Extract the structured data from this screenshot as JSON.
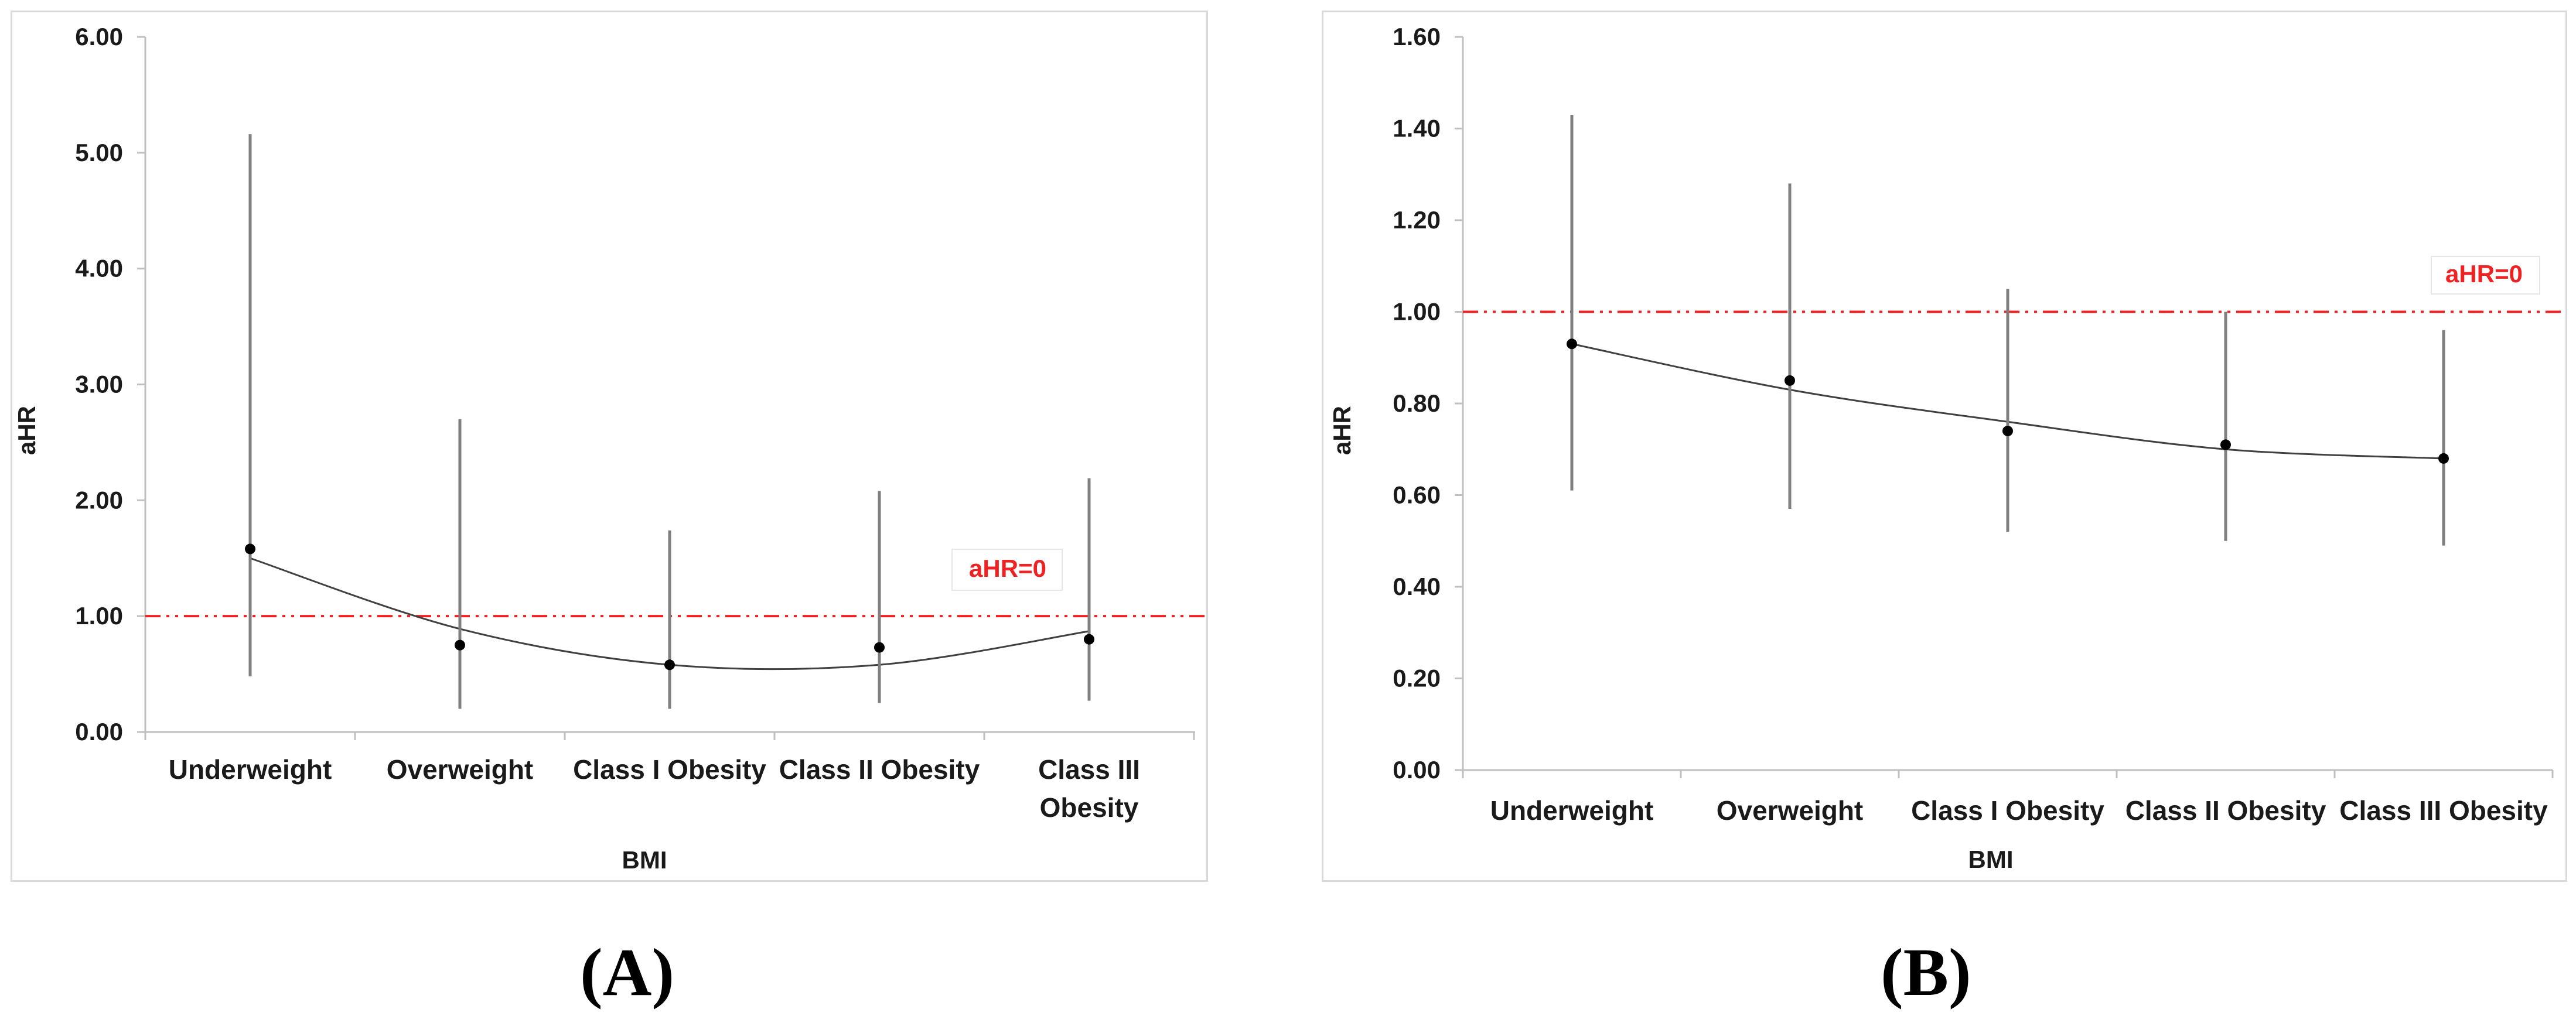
{
  "chart_data": [
    {
      "id": "A",
      "type": "scatter",
      "panel_label": "(A)",
      "xlabel": "BMI",
      "ylabel": "aHR",
      "ylim": [
        0,
        6
      ],
      "ytick_labels": [
        "0.00",
        "1.00",
        "2.00",
        "3.00",
        "4.00",
        "5.00",
        "6.00"
      ],
      "categories": [
        [
          "Underweight"
        ],
        [
          "Overweight"
        ],
        [
          "Class I Obesity"
        ],
        [
          "Class II Obesity"
        ],
        [
          "Class III",
          "Obesity"
        ]
      ],
      "series": [
        {
          "name": "aHR",
          "values": [
            1.58,
            0.75,
            0.58,
            0.73,
            0.8
          ],
          "lower": [
            0.48,
            0.2,
            0.2,
            0.25,
            0.27
          ],
          "upper": [
            5.16,
            2.7,
            1.74,
            2.08,
            2.19
          ]
        }
      ],
      "trendline": {
        "type": "polynomial",
        "values": [
          1.5,
          0.89,
          0.58,
          0.58,
          0.87
        ]
      },
      "reference_line": {
        "y": 1.0,
        "label": "aHR=0",
        "color": "#ee2222"
      }
    },
    {
      "id": "B",
      "type": "scatter",
      "panel_label": "(B)",
      "xlabel": "BMI",
      "ylabel": "aHR",
      "ylim": [
        0,
        1.6
      ],
      "ytick_labels": [
        "0.00",
        "0.20",
        "0.40",
        "0.60",
        "0.80",
        "1.00",
        "1.20",
        "1.40",
        "1.60"
      ],
      "categories": [
        [
          "Underweight"
        ],
        [
          "Overweight"
        ],
        [
          "Class I Obesity"
        ],
        [
          "Class II Obesity"
        ],
        [
          "Class III Obesity"
        ]
      ],
      "series": [
        {
          "name": "aHR",
          "values": [
            0.93,
            0.85,
            0.74,
            0.71,
            0.68
          ],
          "lower": [
            0.61,
            0.57,
            0.52,
            0.5,
            0.49
          ],
          "upper": [
            1.43,
            1.28,
            1.05,
            1.0,
            0.96
          ]
        }
      ],
      "trendline": {
        "type": "polynomial",
        "values": [
          0.93,
          0.83,
          0.76,
          0.7,
          0.68
        ]
      },
      "reference_line": {
        "y": 1.0,
        "label": "aHR=0",
        "color": "#ee2222"
      }
    }
  ]
}
